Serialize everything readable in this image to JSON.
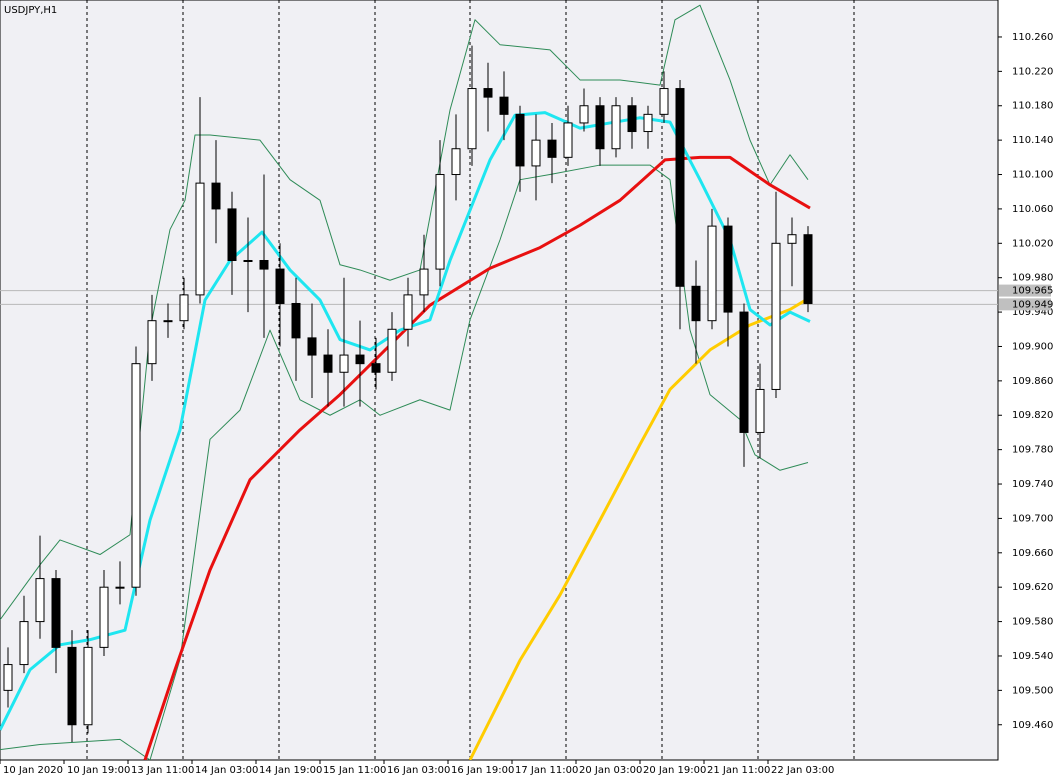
{
  "chart_data": {
    "type": "candlestick",
    "title": "USDJPY,H1",
    "xlim": [
      0,
      249.5
    ],
    "ylim": [
      109.419,
      110.303
    ],
    "xticks": [
      {
        "value": 0,
        "label": "10 Jan 2020"
      },
      {
        "value": 16,
        "label": "10 Jan 19:00"
      },
      {
        "value": 32,
        "label": "13 Jan 11:00"
      },
      {
        "value": 48,
        "label": "14 Jan 03:00"
      },
      {
        "value": 64,
        "label": "14 Jan 19:00"
      },
      {
        "value": 80,
        "label": "15 Jan 11:00"
      },
      {
        "value": 96,
        "label": "16 Jan 03:00"
      },
      {
        "value": 112,
        "label": "16 Jan 19:00"
      },
      {
        "value": 128,
        "label": "17 Jan 11:00"
      },
      {
        "value": 144,
        "label": "20 Jan 03:00"
      },
      {
        "value": 160,
        "label": "20 Jan 19:00"
      },
      {
        "value": 176,
        "label": "21 Jan 11:00"
      },
      {
        "value": 192,
        "label": "22 Jan 03:00"
      }
    ],
    "yticks": [
      {
        "value": 110.26,
        "label": "110.260"
      },
      {
        "value": 110.22,
        "label": "110.220"
      },
      {
        "value": 110.18,
        "label": "110.180"
      },
      {
        "value": 110.14,
        "label": "110.140"
      },
      {
        "value": 110.1,
        "label": "110.100"
      },
      {
        "value": 110.06,
        "label": "110.060"
      },
      {
        "value": 110.02,
        "label": "110.020"
      },
      {
        "value": 109.98,
        "label": "109.980"
      },
      {
        "value": 109.94,
        "label": "109.940"
      },
      {
        "value": 109.9,
        "label": "109.900"
      },
      {
        "value": 109.86,
        "label": "109.860"
      },
      {
        "value": 109.82,
        "label": "109.820"
      },
      {
        "value": 109.78,
        "label": "109.780"
      },
      {
        "value": 109.74,
        "label": "109.740"
      },
      {
        "value": 109.7,
        "label": "109.700"
      },
      {
        "value": 109.66,
        "label": "109.660"
      },
      {
        "value": 109.62,
        "label": "109.620"
      },
      {
        "value": 109.58,
        "label": "109.580"
      },
      {
        "value": 109.54,
        "label": "109.540"
      },
      {
        "value": 109.5,
        "label": "109.500"
      },
      {
        "value": 109.46,
        "label": "109.460"
      }
    ],
    "day_separators": [
      21.75,
      45.75,
      69.75,
      93.75,
      117.5,
      141.5,
      165.5,
      189.5,
      213.5
    ],
    "price_levels": [
      109.965,
      109.949
    ],
    "candles": {
      "x": [
        2,
        6,
        10,
        14,
        18,
        22,
        26,
        30,
        34,
        38,
        42,
        46,
        50,
        54,
        58,
        62,
        66,
        70,
        74,
        78,
        82,
        86,
        90,
        94,
        98,
        102,
        106,
        110,
        114,
        118,
        122,
        126,
        130,
        134,
        138,
        142,
        146,
        150,
        154,
        158,
        162,
        166,
        170,
        174,
        178,
        182,
        186,
        190,
        194,
        198,
        202
      ],
      "open": [
        109.5,
        109.53,
        109.58,
        109.63,
        109.55,
        109.46,
        109.55,
        109.62,
        109.62,
        109.88,
        109.93,
        109.93,
        109.96,
        110.09,
        110.06,
        110.0,
        110.0,
        109.99,
        109.95,
        109.91,
        109.89,
        109.87,
        109.89,
        109.88,
        109.87,
        109.92,
        109.96,
        109.99,
        110.1,
        110.13,
        110.2,
        110.19,
        110.17,
        110.11,
        110.14,
        110.12,
        110.16,
        110.18,
        110.13,
        110.18,
        110.15,
        110.17,
        110.2,
        109.97,
        109.93,
        110.04,
        109.94,
        109.8,
        109.85,
        110.02,
        110.03
      ],
      "high": [
        109.55,
        109.61,
        109.68,
        109.64,
        109.57,
        109.57,
        109.64,
        109.65,
        109.9,
        109.96,
        109.95,
        109.98,
        110.19,
        110.14,
        110.08,
        110.05,
        110.1,
        110.02,
        109.98,
        109.95,
        109.92,
        109.98,
        109.93,
        109.91,
        109.94,
        109.98,
        110.03,
        110.14,
        110.17,
        110.25,
        110.23,
        110.22,
        110.18,
        110.17,
        110.16,
        110.18,
        110.2,
        110.19,
        110.19,
        110.19,
        110.18,
        110.22,
        110.21,
        110.0,
        110.06,
        110.05,
        109.95,
        109.88,
        110.08,
        110.05,
        110.04
      ],
      "low": [
        109.48,
        109.52,
        109.56,
        109.52,
        109.44,
        109.45,
        109.54,
        109.6,
        109.61,
        109.86,
        109.91,
        109.92,
        109.95,
        110.02,
        109.96,
        109.94,
        109.91,
        109.9,
        109.86,
        109.84,
        109.83,
        109.83,
        109.83,
        109.85,
        109.86,
        109.9,
        109.94,
        109.97,
        110.07,
        110.11,
        110.15,
        110.14,
        110.08,
        110.07,
        110.09,
        110.11,
        110.15,
        110.11,
        110.12,
        110.13,
        110.13,
        110.16,
        109.92,
        109.88,
        109.92,
        109.9,
        109.76,
        109.77,
        109.84,
        109.97,
        109.94
      ],
      "close": [
        109.53,
        109.58,
        109.63,
        109.55,
        109.46,
        109.55,
        109.62,
        109.62,
        109.88,
        109.93,
        109.93,
        109.96,
        110.09,
        110.06,
        110.0,
        110.0,
        109.99,
        109.95,
        109.91,
        109.89,
        109.87,
        109.89,
        109.88,
        109.87,
        109.92,
        109.96,
        109.99,
        110.1,
        110.13,
        110.2,
        110.19,
        110.17,
        110.11,
        110.14,
        110.12,
        110.16,
        110.18,
        110.13,
        110.18,
        110.15,
        110.17,
        110.2,
        109.97,
        109.93,
        110.04,
        109.94,
        109.8,
        109.85,
        110.02,
        110.03,
        109.95
      ]
    },
    "series": [
      {
        "color": "#2e8b57",
        "x": [
          0,
          10,
          15,
          25,
          32.5,
          37.5,
          42.5,
          46.25,
          48.75,
          52.5,
          65,
          72.5,
          80,
          85,
          90,
          97.5,
          105,
          112.5,
          118.75,
          125,
          137.5,
          145,
          155,
          165,
          168.75,
          175,
          182.5,
          187.5,
          192.5,
          197.5,
          202
        ],
        "values": [
          109.582,
          109.646,
          109.675,
          109.658,
          109.681,
          109.919,
          110.036,
          110.07,
          110.146,
          110.146,
          110.14,
          110.094,
          110.07,
          109.995,
          109.989,
          109.977,
          109.989,
          110.175,
          110.28,
          110.251,
          110.245,
          110.21,
          110.21,
          110.204,
          110.28,
          110.297,
          110.21,
          110.14,
          110.088,
          110.123,
          110.094
        ]
      },
      {
        "color": "#2e8b57",
        "x": [
          0,
          10,
          30,
          37.5,
          45,
          52.5,
          60,
          67.5,
          75,
          82.5,
          90,
          95,
          105,
          112.5,
          117.5,
          125,
          130,
          137.5,
          150,
          162.5,
          167.5,
          172.5,
          177.5,
          185,
          188.75,
          195,
          202
        ],
        "values": [
          109.431,
          109.437,
          109.443,
          109.419,
          109.536,
          109.792,
          109.826,
          109.919,
          109.838,
          109.82,
          109.838,
          109.82,
          109.838,
          109.826,
          109.931,
          110.024,
          110.094,
          110.1,
          110.111,
          110.111,
          110.094,
          109.919,
          109.844,
          109.815,
          109.774,
          109.756,
          109.765
        ]
      },
      {
        "color": "#ffcc00",
        "x": [
          117.5,
          130,
          140,
          150,
          160,
          167.5,
          177.5,
          187.5,
          197.5,
          202.5
        ],
        "values": [
          109.419,
          109.535,
          109.611,
          109.698,
          109.786,
          109.85,
          109.896,
          109.925,
          109.943,
          109.957
        ]
      },
      {
        "color": "#e81010",
        "x": [
          36.25,
          43.75,
          52.5,
          62.5,
          75,
          85,
          95,
          107.5,
          122.5,
          135,
          145,
          155,
          166.25,
          175,
          182.5,
          192.5,
          202.5
        ],
        "values": [
          109.419,
          109.524,
          109.64,
          109.745,
          109.803,
          109.844,
          109.89,
          109.948,
          109.991,
          110.015,
          110.041,
          110.07,
          110.117,
          110.12,
          110.12,
          110.088,
          110.061
        ]
      },
      {
        "color": "#1ee6f0",
        "x": [
          0,
          7.5,
          15,
          22.5,
          31.25,
          37.5,
          45,
          51.25,
          57.5,
          65.5,
          72.5,
          80,
          85,
          92.5,
          100,
          107.5,
          112.5,
          122.5,
          128.75,
          136.25,
          145,
          152.5,
          160,
          167.5,
          175,
          182.5,
          187.5,
          192.5,
          197.5,
          202.5
        ],
        "values": [
          109.454,
          109.524,
          109.553,
          109.559,
          109.57,
          109.698,
          109.803,
          109.954,
          110.0,
          110.033,
          109.989,
          109.954,
          109.908,
          109.896,
          109.919,
          109.931,
          110.0,
          110.117,
          110.169,
          110.172,
          110.154,
          110.16,
          110.166,
          110.161,
          110.094,
          110.024,
          109.943,
          109.925,
          109.94,
          109.929
        ]
      }
    ]
  }
}
